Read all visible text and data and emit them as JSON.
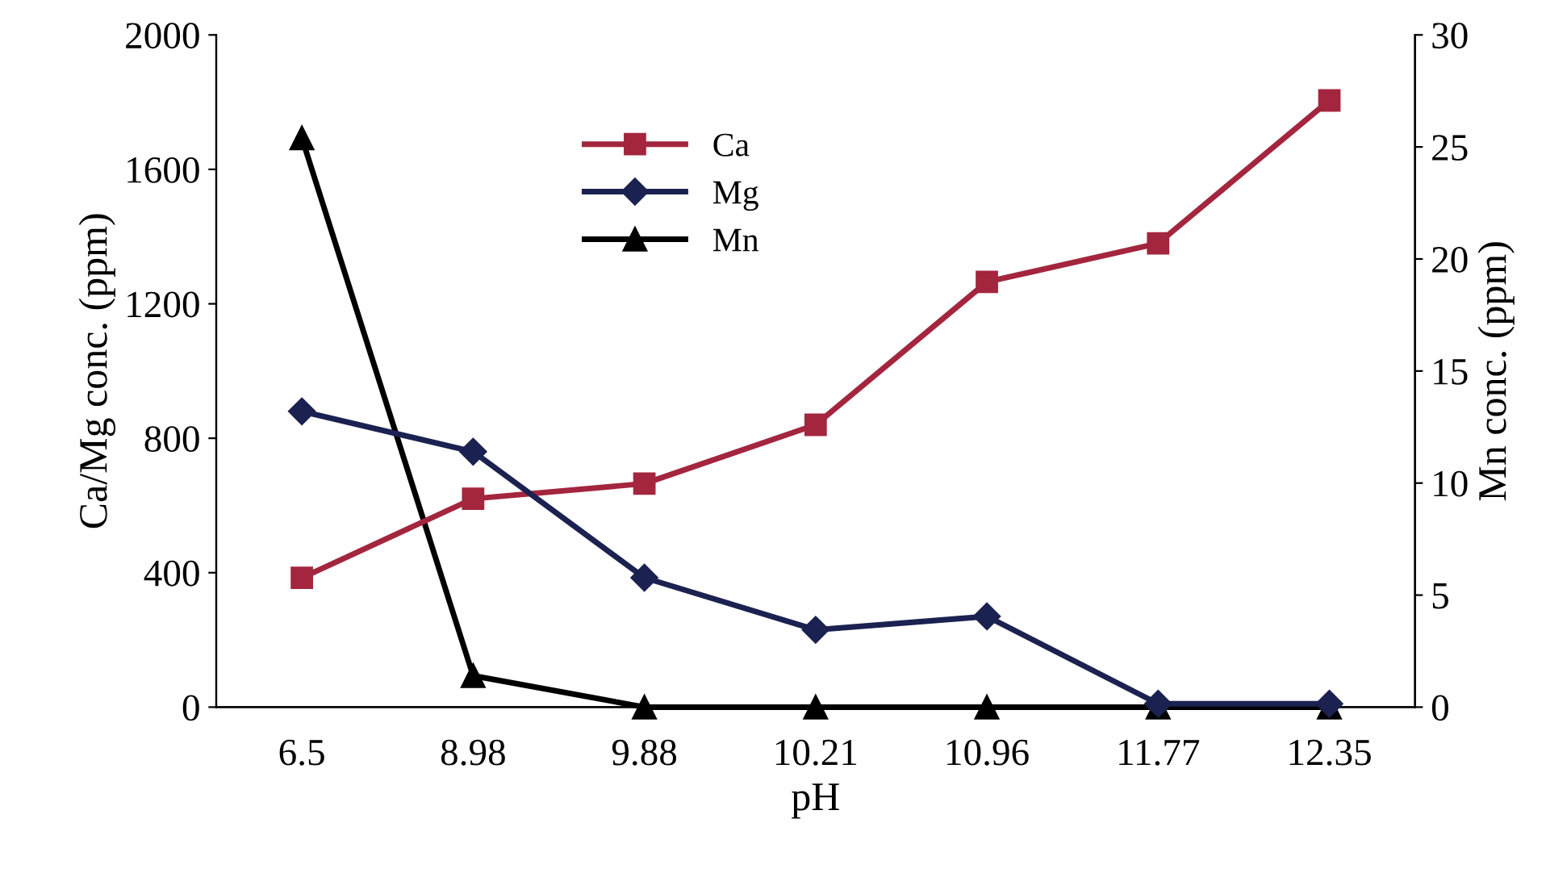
{
  "chart_data": {
    "type": "line",
    "xlabel": "pH",
    "ylabel": "Ca/Mg conc. (ppm)",
    "y2label": "Mn conc. (ppm)",
    "categories": [
      "6.5",
      "8.98",
      "9.88",
      "10.21",
      "10.96",
      "11.77",
      "12.35"
    ],
    "series": [
      {
        "name": "Ca",
        "color": "#a3263e",
        "marker": "square",
        "values": [
          385,
          620,
          665,
          840,
          1265,
          1380,
          1805
        ]
      },
      {
        "name": "Mg",
        "color": "#1b2150",
        "marker": "diamond",
        "values": [
          880,
          760,
          385,
          230,
          270,
          10,
          10
        ]
      },
      {
        "name": "Mn",
        "color": "#000000",
        "marker": "triangle",
        "axis": "y2",
        "values": [
          25.4,
          1.4,
          0,
          0,
          0,
          0,
          0
        ]
      }
    ],
    "ylim": [
      0,
      2000
    ],
    "yticks": [
      0,
      400,
      800,
      1200,
      1600,
      2000
    ],
    "y2lim": [
      0,
      30
    ],
    "y2ticks": [
      0,
      5,
      10,
      15,
      20,
      25,
      30
    ],
    "grid": false,
    "legend": "top",
    "line_style": "solid"
  }
}
